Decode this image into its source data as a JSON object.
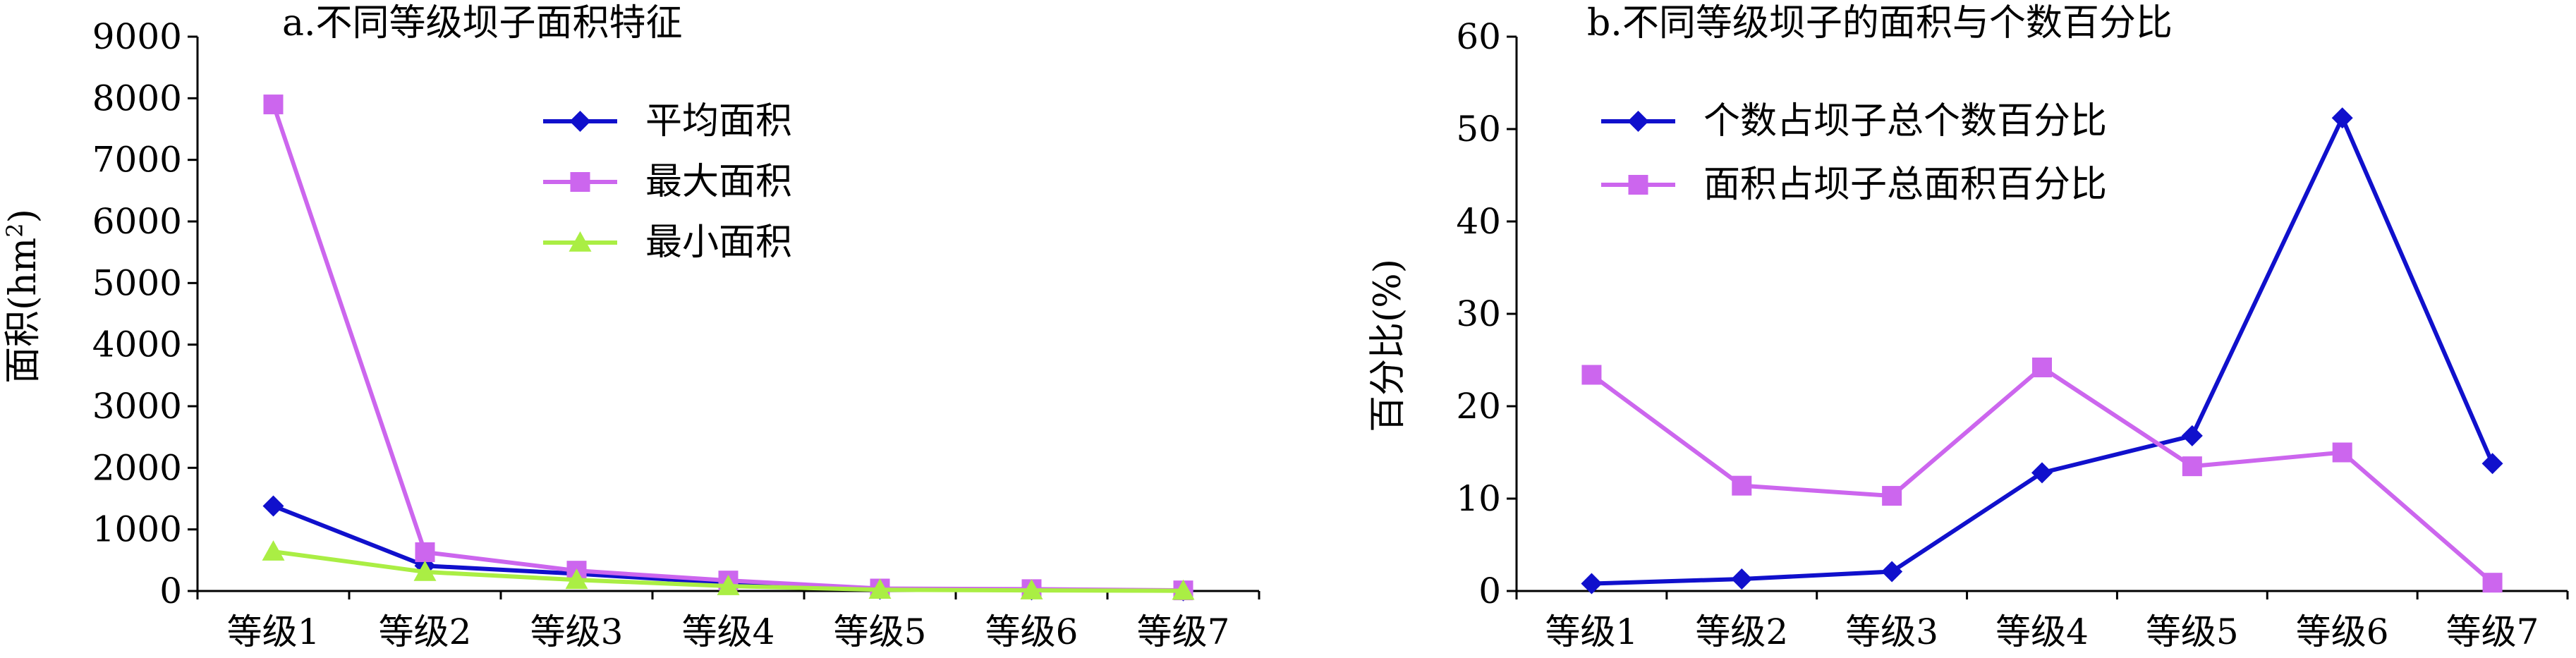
{
  "chart_data": [
    {
      "type": "line",
      "title": "a.不同等级坝子面积特征",
      "xlabel": "",
      "ylabel": "面积(hm²)",
      "ylabel_main": "面积(hm",
      "ylabel_sup": "2",
      "ylabel_close": ")",
      "categories": [
        "等级1",
        "等级2",
        "等级3",
        "等级4",
        "等级5",
        "等级6",
        "等级7"
      ],
      "ylim": [
        0,
        9000
      ],
      "yticks": [
        0,
        1000,
        2000,
        3000,
        4000,
        5000,
        6000,
        7000,
        8000,
        9000
      ],
      "grid": false,
      "legend_position": "top-center",
      "series": [
        {
          "name": "平均面积",
          "color": "#1010cc",
          "marker": "diamond",
          "values": [
            1380,
            410,
            280,
            130,
            30,
            20,
            5
          ]
        },
        {
          "name": "最大面积",
          "color": "#cc66ee",
          "marker": "square",
          "values": [
            7900,
            630,
            330,
            170,
            40,
            30,
            10
          ]
        },
        {
          "name": "最小面积",
          "color": "#aaee44",
          "marker": "triangle",
          "values": [
            640,
            310,
            180,
            80,
            20,
            10,
            3
          ]
        }
      ]
    },
    {
      "type": "line",
      "title": "b.不同等级坝子的面积与个数百分比",
      "xlabel": "",
      "ylabel": "百分比(%)",
      "categories": [
        "等级1",
        "等级2",
        "等级3",
        "等级4",
        "等级5",
        "等级6",
        "等级7"
      ],
      "ylim": [
        0,
        60
      ],
      "yticks": [
        0,
        10,
        20,
        30,
        40,
        50,
        60
      ],
      "grid": false,
      "legend_position": "top-left",
      "series": [
        {
          "name": "个数占坝子总个数百分比",
          "color": "#1010cc",
          "marker": "diamond",
          "values": [
            0.8,
            1.3,
            2.1,
            12.8,
            16.8,
            51.2,
            13.8
          ]
        },
        {
          "name": "面积占坝子总面积百分比",
          "color": "#cc66ee",
          "marker": "square",
          "values": [
            23.4,
            11.4,
            10.3,
            24.2,
            13.5,
            15.0,
            0.9
          ]
        }
      ]
    }
  ]
}
